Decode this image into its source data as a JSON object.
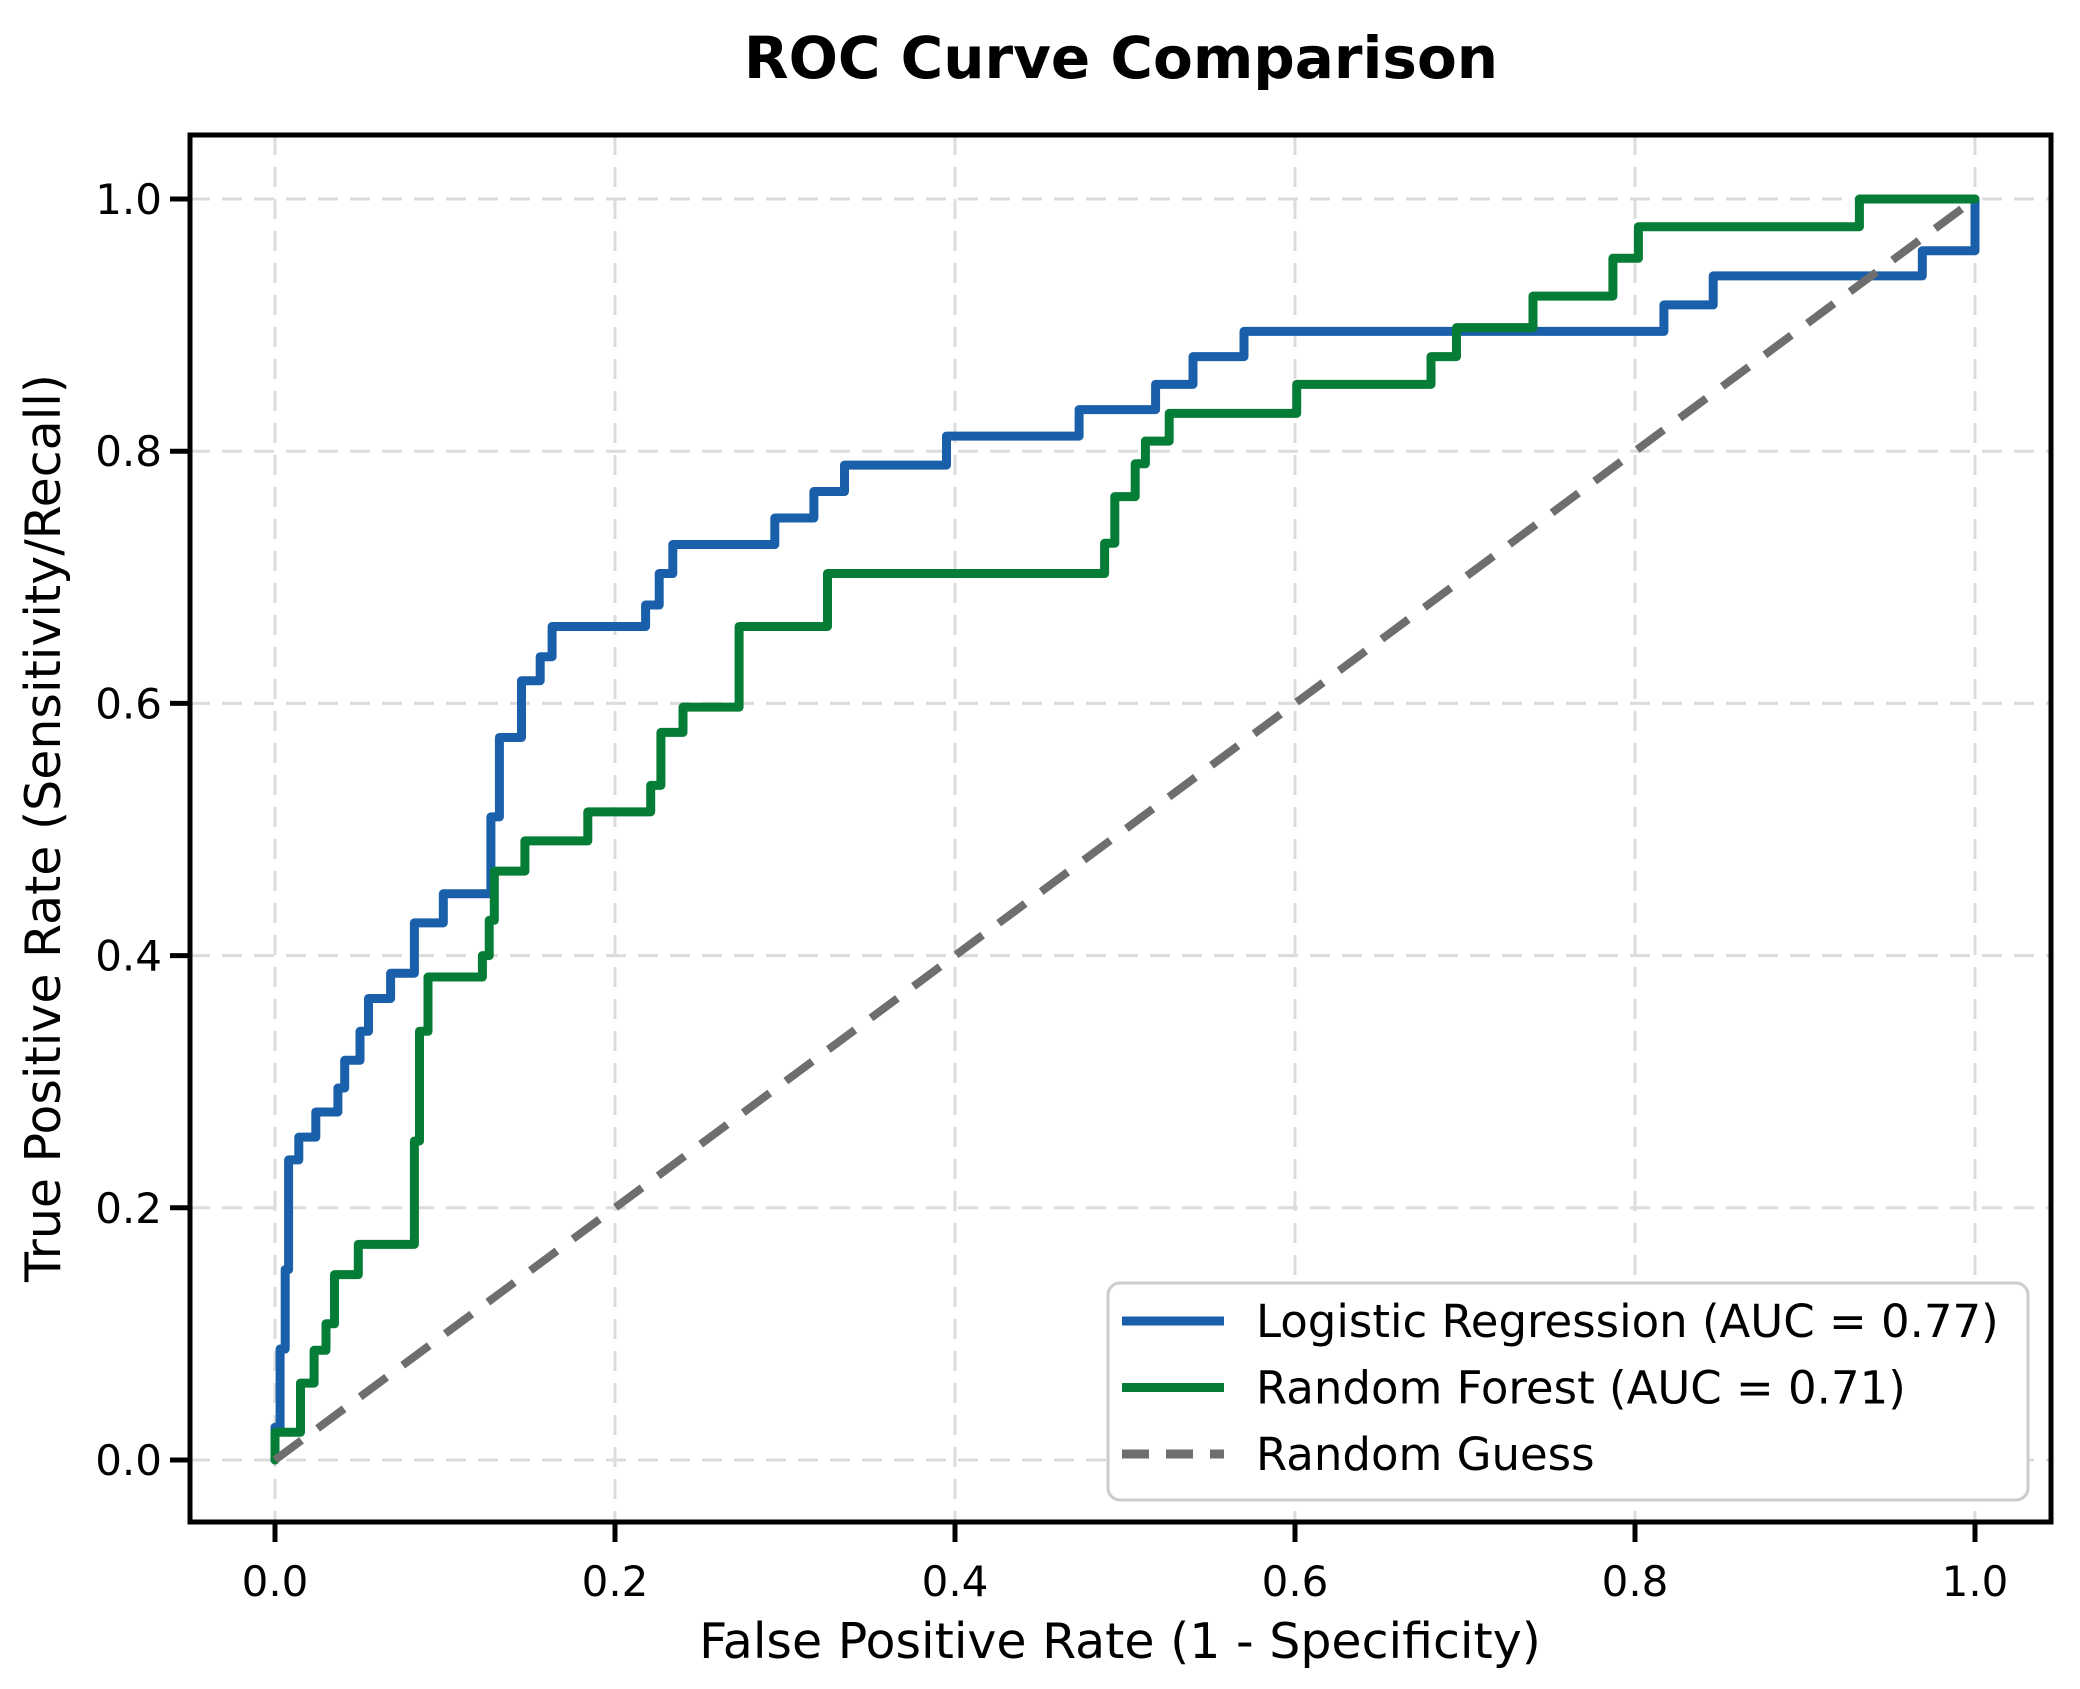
{
  "title": "ROC Curve Comparison",
  "axes": {
    "x": {
      "label": "False Positive Rate (1 - Specificity)",
      "ticks": [
        {
          "v": 0.0,
          "t": "0.0"
        },
        {
          "v": 0.2,
          "t": "0.2"
        },
        {
          "v": 0.4,
          "t": "0.4"
        },
        {
          "v": 0.6,
          "t": "0.6"
        },
        {
          "v": 0.8,
          "t": "0.8"
        },
        {
          "v": 1.0,
          "t": "1.0"
        }
      ]
    },
    "y": {
      "label": "True Positive Rate (Sensitivity/Recall)",
      "ticks": [
        {
          "v": 0.0,
          "t": "0.0"
        },
        {
          "v": 0.2,
          "t": "0.2"
        },
        {
          "v": 0.4,
          "t": "0.4"
        },
        {
          "v": 0.6,
          "t": "0.6"
        },
        {
          "v": 0.8,
          "t": "0.8"
        },
        {
          "v": 1.0,
          "t": "1.0"
        }
      ]
    }
  },
  "colors": {
    "logistic": "#1a5faa",
    "forest": "#067d36",
    "diagonal": "#6e6e6e",
    "grid": "#dcdcdc",
    "spine": "#000000",
    "legend_border": "#cccccc"
  },
  "legend": {
    "items": [
      {
        "label": "Logistic Regression (AUC = 0.77)",
        "color": "#1a5faa",
        "dash": "solid"
      },
      {
        "label": "Random Forest (AUC = 0.71)",
        "color": "#067d36",
        "dash": "solid"
      },
      {
        "label": "Random Guess",
        "color": "#6e6e6e",
        "dash": "dashed"
      }
    ]
  },
  "chart_data": {
    "type": "line",
    "title": "ROC Curve Comparison",
    "xlabel": "False Positive Rate (1 - Specificity)",
    "ylabel": "True Positive Rate (Sensitivity/Recall)",
    "xlim": [
      0.0,
      1.0
    ],
    "ylim": [
      0.0,
      1.0
    ],
    "grid": true,
    "legend_position": "lower right",
    "series": [
      {
        "name": "Logistic Regression",
        "auc": 0.77,
        "color": "#1a5faa",
        "draw": "step",
        "points": [
          [
            0.0,
            0.0
          ],
          [
            0.0,
            0.026
          ],
          [
            0.003,
            0.088
          ],
          [
            0.006,
            0.151
          ],
          [
            0.008,
            0.238
          ],
          [
            0.014,
            0.256
          ],
          [
            0.024,
            0.276
          ],
          [
            0.037,
            0.295
          ],
          [
            0.041,
            0.317
          ],
          [
            0.05,
            0.34
          ],
          [
            0.055,
            0.366
          ],
          [
            0.068,
            0.386
          ],
          [
            0.082,
            0.426
          ],
          [
            0.099,
            0.449
          ],
          [
            0.127,
            0.51
          ],
          [
            0.132,
            0.573
          ],
          [
            0.145,
            0.618
          ],
          [
            0.156,
            0.637
          ],
          [
            0.163,
            0.661
          ],
          [
            0.218,
            0.678
          ],
          [
            0.226,
            0.703
          ],
          [
            0.234,
            0.726
          ],
          [
            0.294,
            0.747
          ],
          [
            0.317,
            0.768
          ],
          [
            0.335,
            0.789
          ],
          [
            0.395,
            0.812
          ],
          [
            0.473,
            0.833
          ],
          [
            0.518,
            0.853
          ],
          [
            0.54,
            0.875
          ],
          [
            0.57,
            0.895
          ],
          [
            0.817,
            0.916
          ],
          [
            0.846,
            0.939
          ],
          [
            0.969,
            0.959
          ],
          [
            1.0,
            1.0
          ]
        ]
      },
      {
        "name": "Random Forest",
        "auc": 0.71,
        "color": "#067d36",
        "draw": "step",
        "points": [
          [
            0.0,
            0.0
          ],
          [
            0.0,
            0.022
          ],
          [
            0.015,
            0.061
          ],
          [
            0.023,
            0.087
          ],
          [
            0.03,
            0.108
          ],
          [
            0.035,
            0.147
          ],
          [
            0.049,
            0.171
          ],
          [
            0.082,
            0.253
          ],
          [
            0.085,
            0.34
          ],
          [
            0.09,
            0.383
          ],
          [
            0.122,
            0.4
          ],
          [
            0.126,
            0.428
          ],
          [
            0.129,
            0.467
          ],
          [
            0.147,
            0.491
          ],
          [
            0.184,
            0.514
          ],
          [
            0.221,
            0.535
          ],
          [
            0.227,
            0.577
          ],
          [
            0.24,
            0.597
          ],
          [
            0.273,
            0.661
          ],
          [
            0.325,
            0.703
          ],
          [
            0.488,
            0.727
          ],
          [
            0.494,
            0.764
          ],
          [
            0.506,
            0.79
          ],
          [
            0.512,
            0.808
          ],
          [
            0.526,
            0.83
          ],
          [
            0.601,
            0.853
          ],
          [
            0.68,
            0.875
          ],
          [
            0.695,
            0.898
          ],
          [
            0.74,
            0.923
          ],
          [
            0.787,
            0.953
          ],
          [
            0.802,
            0.978
          ],
          [
            0.932,
            1.0
          ],
          [
            1.0,
            1.0
          ]
        ]
      },
      {
        "name": "Random Guess",
        "color": "#6e6e6e",
        "draw": "dashed-line",
        "points": [
          [
            0.0,
            0.0
          ],
          [
            1.0,
            1.0
          ]
        ]
      }
    ]
  }
}
